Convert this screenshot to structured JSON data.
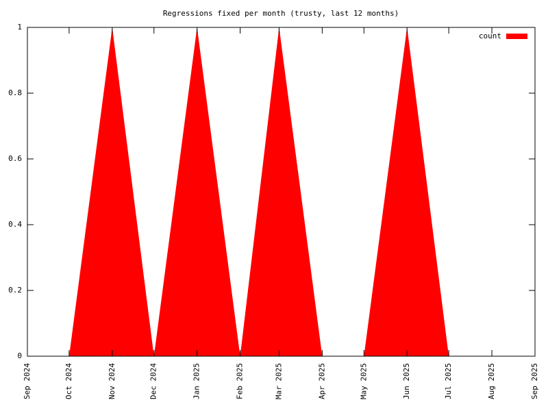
{
  "chart_data": {
    "type": "area",
    "title": "Regressions fixed per month (trusty, last 12 months)",
    "x": [
      "2024-09",
      "2024-10",
      "2024-11",
      "2024-12",
      "2025-01",
      "2025-02",
      "2025-03",
      "2025-04",
      "2025-05",
      "2025-06",
      "2025-07",
      "2025-08",
      "2025-09"
    ],
    "series": [
      {
        "name": "count",
        "color": "#ff0000",
        "values": [
          0,
          0,
          1,
          0,
          1,
          0,
          1,
          0,
          0,
          1,
          0,
          0,
          0
        ]
      }
    ],
    "xlim": [
      "2024-09",
      "2025-09"
    ],
    "xticks": [
      {
        "value": "2024-09",
        "label": "Sep 2024"
      },
      {
        "value": "2024-10",
        "label": "Oct 2024"
      },
      {
        "value": "2024-11",
        "label": "Nov 2024"
      },
      {
        "value": "2024-12",
        "label": "Dec 2024"
      },
      {
        "value": "2025-01",
        "label": "Jan 2025"
      },
      {
        "value": "2025-02",
        "label": "Feb 2025"
      },
      {
        "value": "2025-03",
        "label": "Mar 2025"
      },
      {
        "value": "2025-04",
        "label": "Apr 2025"
      },
      {
        "value": "2025-05",
        "label": "May 2025"
      },
      {
        "value": "2025-06",
        "label": "Jun 2025"
      },
      {
        "value": "2025-07",
        "label": "Jul 2025"
      },
      {
        "value": "2025-08",
        "label": "Aug 2025"
      },
      {
        "value": "2025-09",
        "label": "Sep 2025"
      }
    ],
    "ylim": [
      0,
      1
    ],
    "yticks": [
      0,
      0.2,
      0.4,
      0.6,
      0.8,
      1
    ],
    "legend": "top-right"
  }
}
